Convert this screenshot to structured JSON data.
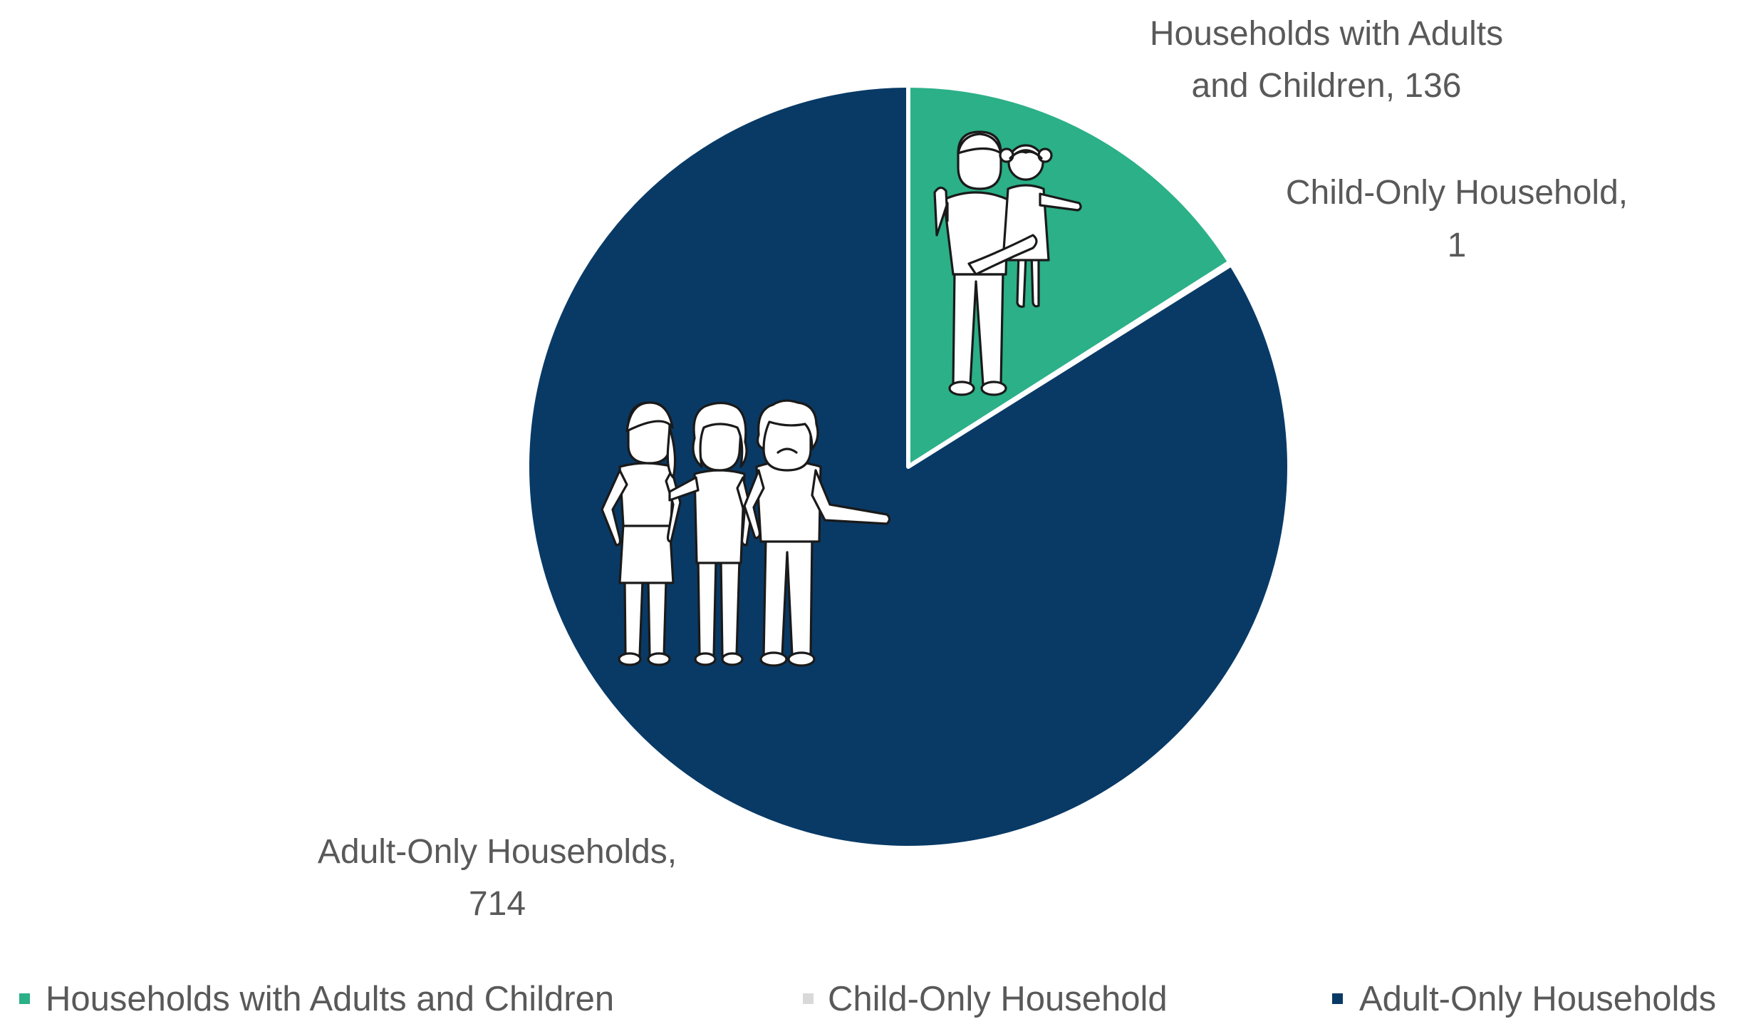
{
  "chart_data": {
    "type": "pie",
    "title": "",
    "categories": [
      "Households with Adults and Children",
      "Child-Only Household",
      "Adult-Only Households"
    ],
    "values": [
      136,
      1,
      714
    ],
    "colors": [
      "#2bb088",
      "#d9d9d9",
      "#093a66"
    ],
    "data_labels": [
      {
        "line1": "Households with Adults",
        "line2": "and Children, 136"
      },
      {
        "line1": "Child-Only Household,",
        "line2": "1"
      },
      {
        "line1": "Adult-Only Households,",
        "line2": "714"
      }
    ],
    "start_angle_deg": 0,
    "direction": "clockwise",
    "legend_position": "bottom",
    "icons": [
      "adult-holding-child-icon",
      "group-of-adults-icon"
    ]
  }
}
